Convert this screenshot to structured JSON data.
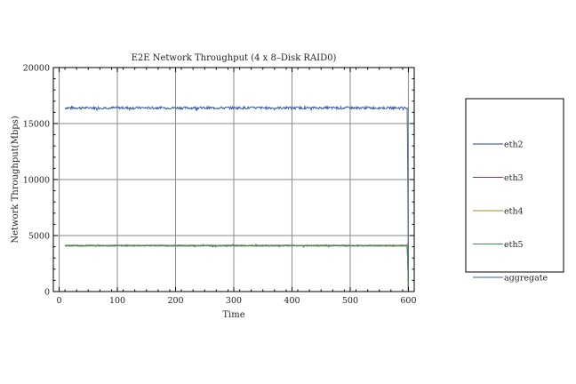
{
  "chart_data": {
    "type": "line",
    "title": "E2E Network Throughput (4 x 8–Disk RAID0)",
    "xlabel": "Time",
    "ylabel": "Network Throughput(Mbps)",
    "xlim": [
      -10,
      610
    ],
    "ylim": [
      0,
      20000
    ],
    "x_ticks": [
      0,
      100,
      200,
      300,
      400,
      500,
      600
    ],
    "y_ticks": [
      0,
      5000,
      10000,
      15000,
      20000
    ],
    "grid": true,
    "legend_position": "right",
    "series": [
      {
        "name": "eth2",
        "color": "#2b3d8f",
        "level": 4100
      },
      {
        "name": "eth3",
        "color": "#a0306a",
        "level": 4100
      },
      {
        "name": "eth4",
        "color": "#a08a3a",
        "level": 4100
      },
      {
        "name": "eth5",
        "color": "#3c8f55",
        "level": 4100
      },
      {
        "name": "aggregate",
        "color": "#3a5fa8",
        "level": 16400
      }
    ],
    "time_range": [
      10,
      600
    ],
    "drop_off_time": 600
  }
}
